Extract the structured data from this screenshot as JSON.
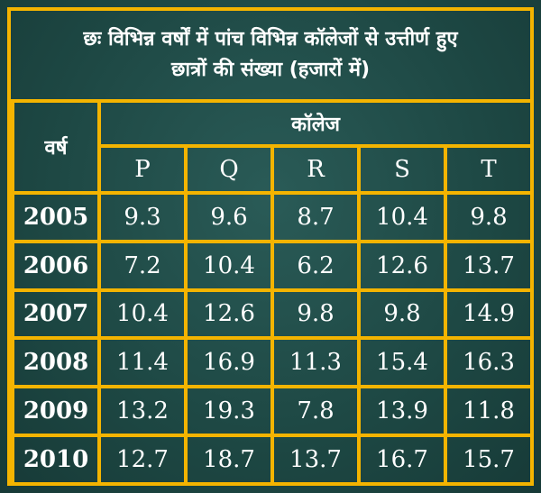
{
  "title": {
    "line1": "छः विभिन्न वर्षों में पांच विभिन्न कॉलेजों से उत्तीर्ण हुए",
    "line2": "छात्रों की संख्या (हजारों में)"
  },
  "table": {
    "year_header": "वर्ष",
    "group_header": "कॉलेज",
    "columns": [
      "P",
      "Q",
      "R",
      "S",
      "T"
    ],
    "rows": [
      {
        "year": "2005",
        "values": [
          "9.3",
          "9.6",
          "8.7",
          "10.4",
          "9.8"
        ]
      },
      {
        "year": "2006",
        "values": [
          "7.2",
          "10.4",
          "6.2",
          "12.6",
          "13.7"
        ]
      },
      {
        "year": "2007",
        "values": [
          "10.4",
          "12.6",
          "9.8",
          "9.8",
          "14.9"
        ]
      },
      {
        "year": "2008",
        "values": [
          "11.4",
          "16.9",
          "11.3",
          "15.4",
          "16.3"
        ]
      },
      {
        "year": "2009",
        "values": [
          "13.2",
          "19.3",
          "7.8",
          "13.9",
          "11.8"
        ]
      },
      {
        "year": "2010",
        "values": [
          "12.7",
          "18.7",
          "13.7",
          "16.7",
          "15.7"
        ]
      }
    ]
  }
}
